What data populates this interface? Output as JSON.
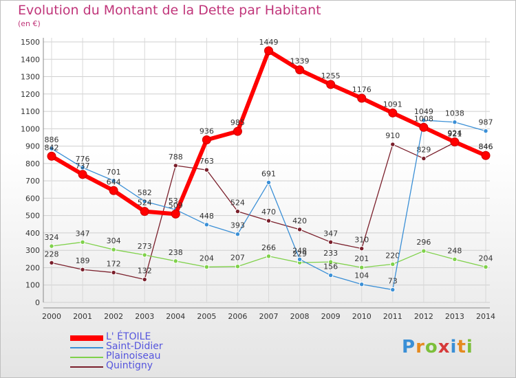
{
  "title": "Evolution du Montant de la Dette par Habitant",
  "subtitle": "(en €)",
  "logo": "Proxiti",
  "chart_data": {
    "type": "line",
    "x": [
      "2000",
      "2001",
      "2002",
      "2003",
      "2004",
      "2005",
      "2006",
      "2007",
      "2008",
      "2009",
      "2010",
      "2011",
      "2012",
      "2013",
      "2014"
    ],
    "ylim": [
      0,
      1500
    ],
    "yticks": [
      0,
      100,
      200,
      300,
      400,
      500,
      600,
      700,
      800,
      900,
      1000,
      1100,
      1200,
      1300,
      1400,
      1500
    ],
    "grid": true,
    "legend_position": "bottom-left",
    "series": [
      {
        "name": "Quintigny",
        "color": "#7a1f2b",
        "values": [
          228,
          189,
          172,
          132,
          788,
          763,
          524,
          470,
          420,
          347,
          310,
          910,
          829,
          921,
          846
        ]
      },
      {
        "name": "Plainoiseau",
        "color": "#7fd14a",
        "values": [
          324,
          347,
          304,
          273,
          238,
          204,
          207,
          266,
          229,
          233,
          201,
          220,
          296,
          248,
          204
        ]
      },
      {
        "name": "Saint-Didier",
        "color": "#3a8fd6",
        "values": [
          886,
          776,
          701,
          582,
          534,
          448,
          393,
          691,
          248,
          156,
          104,
          73,
          1049,
          1038,
          987
        ]
      },
      {
        "name": "L' ÉTOILE",
        "color": "#ff0000",
        "values": [
          842,
          737,
          644,
          524,
          509,
          936,
          985,
          1449,
          1339,
          1255,
          1176,
          1091,
          1008,
          924,
          846
        ]
      }
    ]
  }
}
